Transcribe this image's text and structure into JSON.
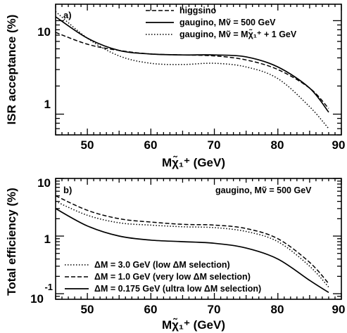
{
  "chart_data": [
    {
      "type": "line",
      "panel_label": "a)",
      "xlim": [
        45,
        90
      ],
      "ylim": [
        0.6,
        15
      ],
      "yscale": "log",
      "x_ticks": [
        "50",
        "60",
        "70",
        "80",
        "90"
      ],
      "y_ticks": [
        "1",
        "10"
      ],
      "ylabel": "ISR acceptance (%)",
      "xlabel": "Mχ̃₁⁺ (GeV)",
      "legend_position": "top-right",
      "series": [
        {
          "name": "higgsino",
          "style": "dashed",
          "x": [
            45,
            50,
            55,
            60,
            65,
            70,
            75,
            80,
            85,
            88
          ],
          "y": [
            7.5,
            5.6,
            4.8,
            4.4,
            4.3,
            4.2,
            3.8,
            3.0,
            1.9,
            1.15
          ]
        },
        {
          "name": "gaugino, Mṽ = 500 GeV",
          "style": "solid",
          "x": [
            45,
            50,
            55,
            60,
            65,
            70,
            75,
            80,
            85,
            88
          ],
          "y": [
            11.0,
            6.5,
            4.8,
            4.4,
            4.3,
            4.3,
            4.1,
            3.2,
            1.9,
            1.05
          ]
        },
        {
          "name": "gaugino, Mṽ = Mχ̃₁⁺ + 1 GeV",
          "style": "dotted",
          "x": [
            45,
            50,
            55,
            60,
            65,
            70,
            75,
            80,
            85,
            88
          ],
          "y": [
            12.5,
            6.5,
            4.2,
            3.5,
            3.4,
            3.5,
            3.2,
            2.4,
            1.2,
            0.7
          ]
        }
      ]
    },
    {
      "type": "line",
      "panel_label": "b)",
      "annotation": "gaugino, Mṽ = 500 GeV",
      "xlim": [
        45,
        90
      ],
      "ylim": [
        0.08,
        10
      ],
      "yscale": "log",
      "x_ticks": [
        "50",
        "60",
        "70",
        "80",
        "90"
      ],
      "y_ticks": [
        "10",
        "-1",
        "1",
        "10"
      ],
      "ylabel": "Total efficiency (%)",
      "xlabel": "Mχ̃₁⁺ (GeV)",
      "legend_position": "bottom-left",
      "series": [
        {
          "name": "ΔM = 3.0 GeV (low ΔM selection)",
          "style": "dotted",
          "x": [
            45,
            50,
            55,
            60,
            65,
            70,
            75,
            80,
            85,
            88
          ],
          "y": [
            4.0,
            2.3,
            1.7,
            1.55,
            1.45,
            1.4,
            1.2,
            0.8,
            0.3,
            0.13
          ]
        },
        {
          "name": "ΔM = 1.0 GeV (very low ΔM selection)",
          "style": "dashed",
          "x": [
            45,
            50,
            55,
            60,
            65,
            70,
            75,
            80,
            85,
            88
          ],
          "y": [
            5.0,
            2.8,
            2.0,
            1.75,
            1.6,
            1.55,
            1.35,
            0.9,
            0.35,
            0.15
          ]
        },
        {
          "name": "ΔM = 0.175 GeV (ultra low ΔM selection)",
          "style": "solid",
          "x": [
            45,
            50,
            55,
            60,
            65,
            70,
            75,
            80,
            85,
            88
          ],
          "y": [
            3.0,
            1.5,
            1.0,
            0.85,
            0.8,
            0.75,
            0.62,
            0.4,
            0.17,
            0.105
          ]
        }
      ]
    }
  ]
}
